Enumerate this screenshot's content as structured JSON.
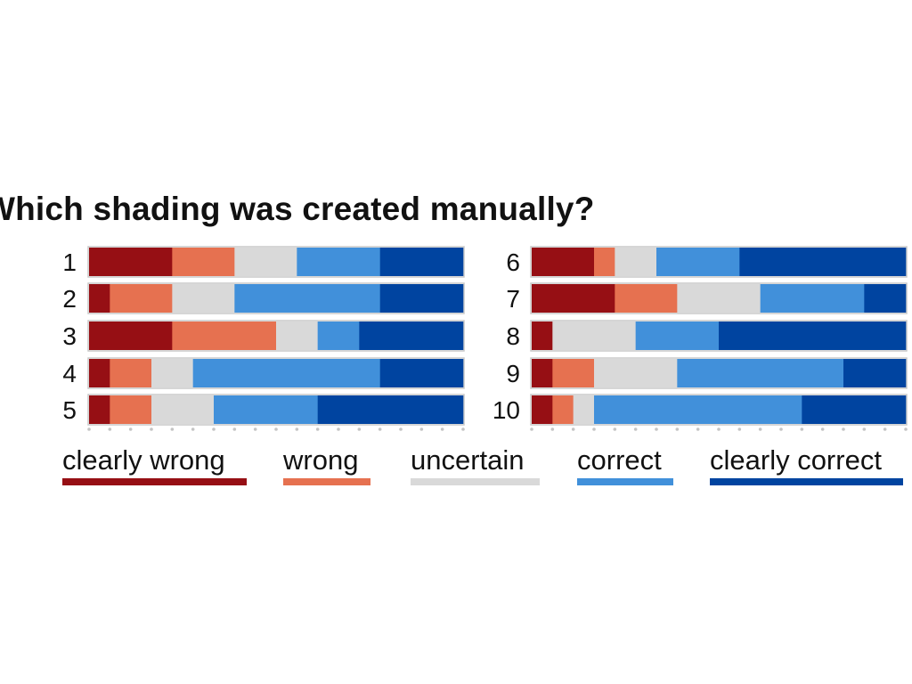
{
  "chart_data": {
    "type": "bar",
    "orientation": "horizontal-stacked-100",
    "title": "Which shading was created manually?",
    "categories_left": [
      "1",
      "2",
      "3",
      "4",
      "5"
    ],
    "categories_right": [
      "6",
      "7",
      "8",
      "9",
      "10"
    ],
    "series": [
      {
        "name": "clearly wrong",
        "color": "#960f14"
      },
      {
        "name": "wrong",
        "color": "#e67150"
      },
      {
        "name": "uncertain",
        "color": "#d9d9d9"
      },
      {
        "name": "correct",
        "color": "#4190da"
      },
      {
        "name": "clearly correct",
        "color": "#0044a0"
      }
    ],
    "rows": [
      {
        "label": "1",
        "values": [
          4,
          3,
          3,
          4,
          4
        ]
      },
      {
        "label": "2",
        "values": [
          1,
          3,
          3,
          7,
          4
        ]
      },
      {
        "label": "3",
        "values": [
          4,
          5,
          2,
          2,
          5
        ]
      },
      {
        "label": "4",
        "values": [
          1,
          2,
          2,
          9,
          4
        ]
      },
      {
        "label": "5",
        "values": [
          1,
          2,
          3,
          5,
          7
        ]
      },
      {
        "label": "6",
        "values": [
          3,
          1,
          2,
          4,
          8
        ]
      },
      {
        "label": "7",
        "values": [
          4,
          3,
          4,
          5,
          2
        ]
      },
      {
        "label": "8",
        "values": [
          1,
          0,
          4,
          4,
          9
        ]
      },
      {
        "label": "9",
        "values": [
          1,
          2,
          4,
          8,
          3
        ]
      },
      {
        "label": "10",
        "values": [
          1,
          1,
          1,
          10,
          5
        ]
      }
    ],
    "total_per_row": 18,
    "legend_position": "bottom"
  }
}
